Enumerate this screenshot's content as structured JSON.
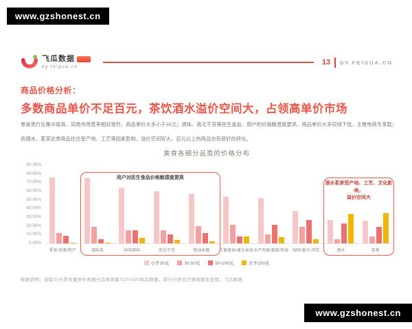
{
  "watermark": {
    "text": "www.gzshonest.cn"
  },
  "header": {
    "logo_title": "飞瓜数据",
    "logo_subtitle": "dy.feigua.cn",
    "page_number": "13",
    "site": "DY.FEIGUA.CN"
  },
  "title": {
    "kicker": "商品价格分析：",
    "headline": "多数商品单价不足百元，茶饮酒水溢价空间大，占领高单价市场"
  },
  "body": {
    "line1": "零食类行业集中度高，同类市场竞争相对激烈，商品单价大多小于30元；调味、南北干货等民生食品，用户的价格敏感度更高，商品单价大多较线下低，主推电商专享款；",
    "line2": "而酒水、茗茶这类商品往往受产地、工艺等因素影响，溢价空间较大，百元以上的商品也有很好的转化。"
  },
  "chart_data": {
    "type": "bar",
    "title": "美食各细分品类的价格分布",
    "categories": [
      "零食/坚果/特产",
      "调味品",
      "烘焙原料",
      "南北干货",
      "粮油米面",
      "方便速食/速冻食品",
      "水产肉类/果蔬/熟食",
      "咖啡/麦片/冲饮",
      "酒水",
      "茗茶"
    ],
    "series": [
      {
        "name": "小于30元",
        "color": "#f7c6c6",
        "values": [
          76,
          75,
          64,
          60,
          57,
          54,
          52,
          37,
          27,
          26
        ]
      },
      {
        "name": "30-50元",
        "color": "#f4a0a0",
        "values": [
          12,
          19,
          15,
          15,
          20,
          21,
          10,
          19,
          5,
          8
        ]
      },
      {
        "name": "50-100元",
        "color": "#ec706d",
        "values": [
          9,
          5,
          15,
          10,
          12,
          8,
          21,
          27,
          23,
          19
        ]
      },
      {
        "name": "大于100元",
        "color": "#f0b505",
        "values": [
          1,
          0.5,
          6,
          4,
          2,
          8,
          7,
          5,
          34,
          35
        ]
      }
    ],
    "ylim": [
      0,
      90
    ],
    "y_ticks": [
      "90.00%",
      "80.00%",
      "70.00%",
      "60.00%",
      "50.00%",
      "40.00%",
      "30.00%",
      "20.00%",
      "10.00%",
      "0.00%"
    ],
    "grid": false,
    "legend_position": "bottom",
    "annotations": [
      {
        "text_lines": [
          "用户对民生食品价格敏感度更高"
        ],
        "from_group": 1,
        "to_group": 4,
        "color": "#4a4a4a"
      },
      {
        "text_lines": [
          "酒水茗茶受产地、工艺、文化影响，",
          "溢价空间大"
        ],
        "from_group": 8,
        "to_group": 9,
        "color": "#c4453d"
      }
    ]
  },
  "footnote": "数据说明：选取30天美食垂类中各细分品类销量TOP1500商品数据，部分分类目已做规整化处理，飞瓜数据"
}
